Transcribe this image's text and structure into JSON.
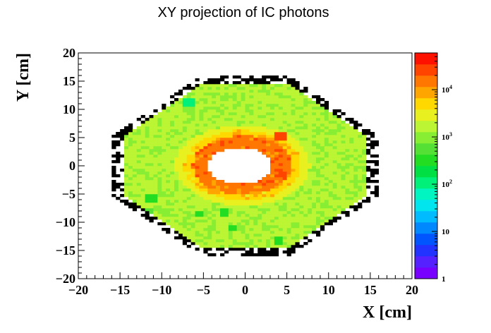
{
  "chart_data": {
    "type": "heatmap",
    "title": "XY projection of IC photons",
    "xlabel": "X [cm]",
    "ylabel": "Y [cm]",
    "xlim": [
      -20,
      20
    ],
    "ylim": [
      -20,
      20
    ],
    "x_ticks": [
      "−20",
      "−15",
      "−10",
      "−5",
      "0",
      "5",
      "10",
      "15",
      "20"
    ],
    "y_ticks": [
      "−20",
      "−15",
      "−10",
      "−5",
      "0",
      "5",
      "10",
      "15",
      "20"
    ],
    "x_tick_values": [
      -20,
      -15,
      -10,
      -5,
      0,
      5,
      10,
      15,
      20
    ],
    "y_tick_values": [
      -20,
      -15,
      -10,
      -5,
      0,
      5,
      10,
      15,
      20
    ],
    "log_z": true,
    "zlim": [
      1,
      60000
    ],
    "colorbar_ticks": [
      {
        "value": 1,
        "base": "1",
        "exp": ""
      },
      {
        "value": 10,
        "base": "10",
        "exp": ""
      },
      {
        "value": 100,
        "base": "10",
        "exp": "2"
      },
      {
        "value": 1000,
        "base": "10",
        "exp": "3"
      },
      {
        "value": 10000,
        "base": "10",
        "exp": "4"
      }
    ],
    "palette": [
      "#7700ff",
      "#5522ff",
      "#2233ff",
      "#0055ff",
      "#0088ff",
      "#00bbff",
      "#00e5ee",
      "#00f5c0",
      "#00f07a",
      "#00e045",
      "#22dd22",
      "#55e035",
      "#88ee33",
      "#bbf533",
      "#e8f020",
      "#ffd800",
      "#ffa500",
      "#ff7700",
      "#ff4400",
      "#ff1100"
    ],
    "regions": [
      {
        "name": "outer-octagon-fringe",
        "kind": "octagon",
        "half_width_x": 16,
        "half_width_y": 16.2,
        "diag": 21.3,
        "counts": 8
      },
      {
        "name": "inner-octagon-body",
        "kind": "octagon",
        "half_width_x": 14.5,
        "half_width_y": 14.5,
        "diag": 19.5,
        "counts": 1500
      },
      {
        "name": "central-hole",
        "kind": "ellipse",
        "cx": -0.6,
        "cy": 0,
        "rx": 3.8,
        "ry": 3.2,
        "counts": 0
      },
      {
        "name": "hole-rim",
        "kind": "ring",
        "cx": -0.3,
        "cy": 0.1,
        "rx": 5.2,
        "ry": 4.6,
        "width": 1.4,
        "counts": 20000
      }
    ],
    "hotspots": [
      {
        "x": -6.7,
        "y": 11.2,
        "counts": 120
      },
      {
        "x": -11.3,
        "y": -5.8,
        "counts": 400
      },
      {
        "x": -5.5,
        "y": -8.6,
        "counts": 300
      },
      {
        "x": -11.8,
        "y": -8.3,
        "counts": 500
      },
      {
        "x": -2.5,
        "y": -8.3,
        "counts": 400
      },
      {
        "x": -1.4,
        "y": -11.0,
        "counts": 250
      },
      {
        "x": 4.0,
        "y": -13.3,
        "counts": 300
      },
      {
        "x": 4.2,
        "y": 5.3,
        "counts": 25000
      },
      {
        "x": -3.8,
        "y": -4.6,
        "counts": 8000
      }
    ]
  }
}
